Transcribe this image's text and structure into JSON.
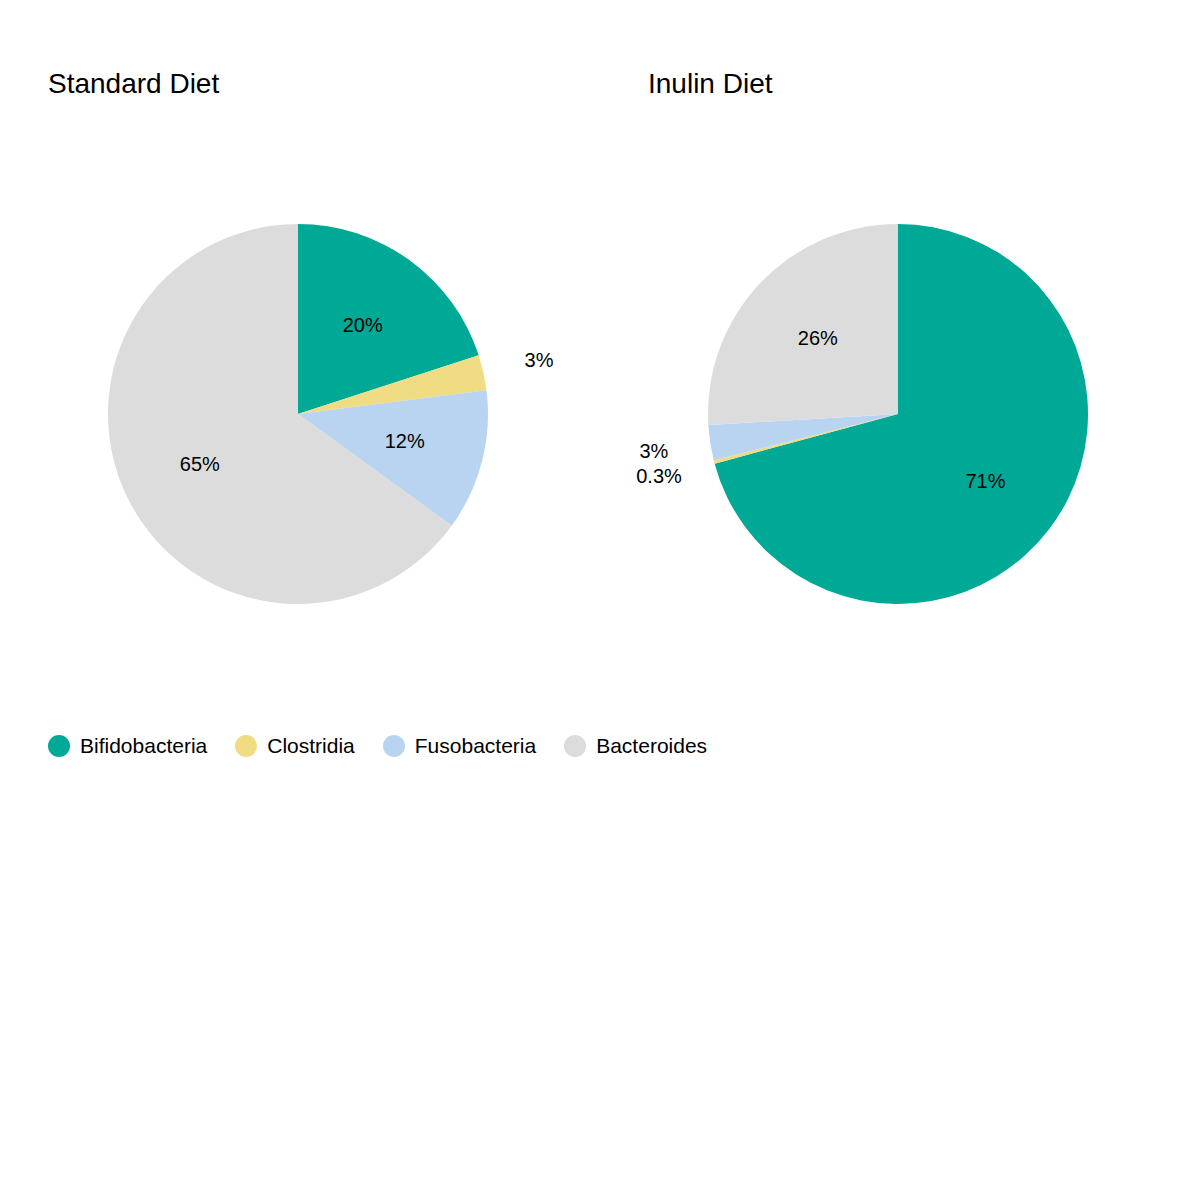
{
  "chart_data": [
    {
      "type": "pie",
      "title": "Standard Diet",
      "categories": [
        "Bifidobacteria",
        "Clostridia",
        "Fusobacteria",
        "Bacteroides"
      ],
      "values": [
        20,
        3,
        12,
        65
      ],
      "value_labels": [
        "20%",
        "3%",
        "12%",
        "65%"
      ],
      "colors": [
        "#00A896",
        "#F0DC82",
        "#B8D4F0",
        "#DCDCDC"
      ],
      "data_labels": true,
      "legend": "lower left"
    },
    {
      "type": "pie",
      "title": "Inulin Diet",
      "categories": [
        "Bifidobacteria",
        "Clostridia",
        "Fusobacteria",
        "Bacteroides"
      ],
      "values": [
        71,
        0.3,
        3,
        26
      ],
      "value_labels": [
        "71%",
        "0.3%",
        "3%",
        "26%"
      ],
      "colors": [
        "#00A896",
        "#F0DC82",
        "#B8D4F0",
        "#DCDCDC"
      ],
      "data_labels": true
    }
  ]
}
